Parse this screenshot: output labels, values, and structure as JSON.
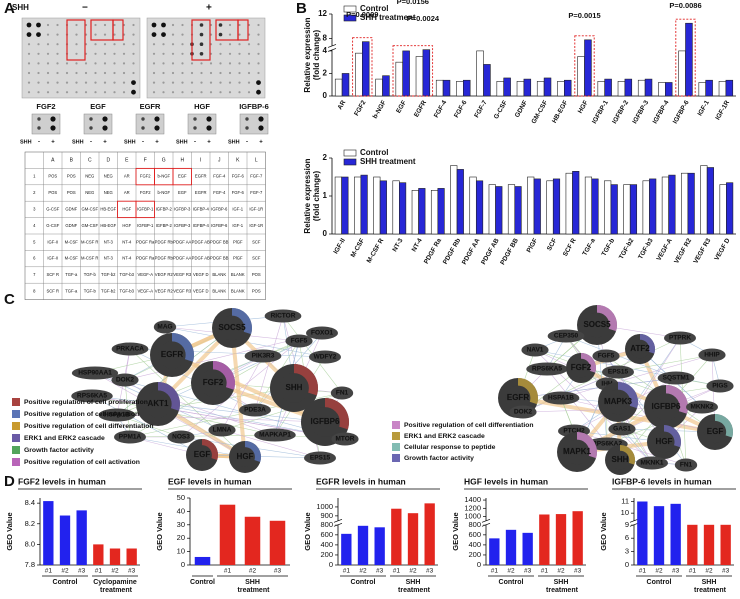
{
  "panels": {
    "a": "A",
    "b": "B",
    "c": "C",
    "d": "D"
  },
  "array": {
    "treatment_label": "SHH",
    "minus": "−",
    "plus": "+",
    "blots": [
      "FGF2",
      "EGF",
      "EGFR",
      "HGF",
      "IGFBP-6"
    ],
    "blot_sign": [
      "SHH",
      "-",
      "+"
    ]
  },
  "table": {
    "header": [
      "A",
      "B",
      "C",
      "D",
      "E",
      "F",
      "G",
      "H",
      "I",
      "J",
      "K",
      "L"
    ],
    "rows": [
      [
        "1",
        "POS",
        "POS",
        "NEG",
        "NEG",
        "AR",
        "FGF2",
        "b-NGF",
        "EGF",
        "EGFR",
        "FGF-4",
        "FGF-6",
        "FGF-7"
      ],
      [
        "2",
        "POS",
        "POS",
        "NEG",
        "NEG",
        "AR",
        "FGF2",
        "b-NGF",
        "EGF",
        "EGFR",
        "FGF-4",
        "FGF-6",
        "FGF-7"
      ],
      [
        "3",
        "G-CSF",
        "GDNF",
        "GM-CSF",
        "HB-EGF",
        "HGF",
        "IGFBP-1",
        "IGFBP-2",
        "IGFBP-3",
        "IGFBP-4",
        "IGFBP-6",
        "IGF-1",
        "IGF-1R"
      ],
      [
        "4",
        "G-CSF",
        "GDNF",
        "GM-CSF",
        "HB-EGF",
        "HGF",
        "IGFBP-1",
        "IGFBP-2",
        "IGFBP-3",
        "IGFBP-4",
        "IGFBP-6",
        "IGF-1",
        "IGF-1R"
      ],
      [
        "5",
        "IGF-II",
        "M-CSF",
        "M-CSF R",
        "NT-3",
        "NT-4",
        "PDGF Ra",
        "PDGF Rb",
        "PDGF AA",
        "PDGF AB",
        "PDGF BB",
        "PlGF",
        "SCF"
      ],
      [
        "6",
        "IGF-II",
        "M-CSF",
        "M-CSF R",
        "NT-3",
        "NT-4",
        "PDGF Ra",
        "PDGF Rb",
        "PDGF AA",
        "PDGF AB",
        "PDGF BB",
        "PlGF",
        "SCF"
      ],
      [
        "7",
        "SCF R",
        "TGF-a",
        "TGF-b",
        "TGF-b2",
        "TGF-b3",
        "VEGF-A",
        "VEGF R2",
        "VEGF R3",
        "VEGF D",
        "BLANK",
        "BLANK",
        "POS"
      ],
      [
        "8",
        "SCF R",
        "TGF-a",
        "TGF-b",
        "TGF-b2",
        "TGF-b3",
        "VEGF-A",
        "VEGF R2",
        "VEGF R3",
        "VEGF D",
        "BLANK",
        "BLANK",
        "POS"
      ]
    ]
  },
  "network": {
    "left_nodes": [
      "MAG",
      "SOCS5",
      "RICTOR",
      "FOXO1",
      "FGF5",
      "WDFY2",
      "PRKACA",
      "EGFR",
      "PIK3R3",
      "HSP90AA1",
      "DOK2",
      "FGF2",
      "SHH",
      "FN1",
      "RPS6KA5",
      "AKT1",
      "HSPA1B",
      "PDE3A",
      "IGFBP6",
      "PPM1A",
      "LMNA",
      "NOS3",
      "MAPKAP1",
      "MTOR",
      "EGF",
      "HGF",
      "EPS15"
    ],
    "right_nodes": [
      "SOCS5",
      "CEP350",
      "NAV1",
      "ATF2",
      "PTPRK",
      "FGF5",
      "HHIP",
      "RPS6KA5",
      "FGF2",
      "EPS15",
      "IHH",
      "SQSTM1",
      "PIGS",
      "EGFR",
      "HSPA1B",
      "MAPK3",
      "IGFBP6",
      "MKNK2",
      "EGF",
      "DOK2",
      "GAS1",
      "PTCH2",
      "RPS6KA2",
      "HGF",
      "MAPK1",
      "SHH",
      "MKNK1",
      "FN1"
    ],
    "left_legend": [
      {
        "label": "Positive regulation of cell proliferation",
        "color": "#a8423f"
      },
      {
        "label": "Positive regulation of cell migration",
        "color": "#5b74b6"
      },
      {
        "label": "Positive regulation of cell differentiation",
        "color": "#c99a2e"
      },
      {
        "label": "ERK1 and ERK2 cascade",
        "color": "#6a5aa6"
      },
      {
        "label": "Growth factor activity",
        "color": "#53a45c"
      },
      {
        "label": "Positive regulation of cell activation",
        "color": "#b864b8"
      }
    ],
    "right_legend": [
      {
        "label": "Positive regulation of cell differentiation",
        "color": "#c985c6"
      },
      {
        "label": "ERK1 and ERK2 cascade",
        "color": "#b89a3c"
      },
      {
        "label": "Cellular response to peptide",
        "color": "#82bcb3"
      },
      {
        "label": "Growth factor activity",
        "color": "#6b67b2"
      }
    ]
  },
  "chart_data": [
    {
      "type": "bar",
      "categories": [
        "AR",
        "FGF2",
        "b-NGF",
        "EGF",
        "EGFR",
        "FGF-4",
        "FGF-6",
        "FGF-7",
        "G-CSF",
        "GDNF",
        "GM-CSF",
        "HB-EGF",
        "HGF",
        "IGFBP-1",
        "IGFBP-2",
        "IGFBP-3",
        "IGFBP-4",
        "IGFBP-6",
        "IGF-1",
        "IGF-1R"
      ],
      "series": [
        {
          "name": "Control",
          "color": "#ffffff",
          "values": [
            1.5,
            3.8,
            1.5,
            3,
            3.5,
            1.4,
            1.3,
            4,
            1.3,
            1.3,
            1.3,
            1.3,
            3.5,
            1.3,
            1.3,
            1.4,
            1.2,
            5.8,
            1.2,
            1.3
          ]
        },
        {
          "name": "SHH treatment",
          "color": "#2727d6",
          "values": [
            2,
            7.5,
            1.8,
            4.5,
            6.2,
            1.4,
            1.4,
            2.8,
            1.6,
            1.5,
            1.6,
            1.4,
            7.8,
            1.5,
            1.5,
            1.5,
            1.2,
            10.5,
            1.4,
            1.4
          ]
        }
      ],
      "ylim": [
        0,
        12
      ],
      "y_break": [
        4,
        6
      ],
      "yticks": [
        0,
        2,
        4,
        8,
        12
      ],
      "y_label": [
        "Relative expression",
        "(fold change)"
      ],
      "annotations": [
        "P=0.0009",
        "P=0.0156",
        "P=0.0024",
        "P=0.0015",
        "P=0.0086"
      ]
    },
    {
      "type": "bar",
      "categories": [
        "IGF-II",
        "M-CSF",
        "M-CSF R",
        "NT-3",
        "NT-4",
        "PDGF Ra",
        "PDGF Rb",
        "PDGF AA",
        "PDGF AB",
        "PDGF BB",
        "PlGF",
        "SCF",
        "SCF R",
        "TGF-a",
        "TGF-b",
        "TGF-b2",
        "TGF-b3",
        "VEGF-A",
        "VEGF R2",
        "VEGF R3",
        "VEGF D"
      ],
      "series": [
        {
          "name": "Control",
          "color": "#ffffff",
          "values": [
            1.5,
            1.5,
            1.5,
            1.4,
            1.15,
            1.15,
            1.8,
            1.5,
            1.3,
            1.3,
            1.5,
            1.4,
            1.6,
            1.5,
            1.4,
            1.3,
            1.4,
            1.5,
            1.6,
            1.8,
            1.3
          ]
        },
        {
          "name": "SHH treatment",
          "color": "#2727d6",
          "values": [
            1.5,
            1.55,
            1.4,
            1.35,
            1.2,
            1.2,
            1.7,
            1.4,
            1.25,
            1.25,
            1.45,
            1.45,
            1.65,
            1.45,
            1.3,
            1.3,
            1.45,
            1.55,
            1.6,
            1.75,
            1.35
          ]
        }
      ],
      "ylim": [
        0,
        2
      ],
      "yticks": [
        0,
        1,
        2
      ],
      "y_label": [
        "Relative expression",
        "(fold change)"
      ]
    },
    {
      "type": "bar",
      "title": "FGF2 levels in human",
      "y_label": "GEO Value",
      "categories": [
        "#1",
        "#2",
        "#3",
        "#1",
        "#2",
        "#3"
      ],
      "series": [
        {
          "name": "Control",
          "color": "#2222ee",
          "values": [
            8.42,
            8.28,
            8.33,
            null,
            null,
            null
          ]
        },
        {
          "name": "Cyclopamine treatment",
          "color": "#e3271f",
          "values": [
            null,
            null,
            null,
            8.0,
            7.96,
            7.96
          ]
        }
      ],
      "ylim": [
        7.8,
        8.45
      ],
      "yticks": [
        7.8,
        {
          "value": 8,
          "label": "8.0"
        },
        8.2,
        8.4
      ]
    },
    {
      "type": "bar",
      "title": "EGF levels in human",
      "y_label": "GEO Value",
      "categories": [
        null,
        "#1",
        "#2",
        "#3"
      ],
      "series": [
        {
          "name": "Control",
          "color": "#2222ee",
          "values": [
            6,
            null,
            null,
            null
          ]
        },
        {
          "name": "SHH treatment",
          "color": "#e3271f",
          "values": [
            null,
            45,
            36,
            33
          ]
        }
      ],
      "ylim": [
        0,
        50
      ],
      "yticks": [
        0,
        10,
        20,
        30,
        40,
        50
      ]
    },
    {
      "type": "bar",
      "title": "EGFR levels in human",
      "y_label": "GEO Value",
      "categories": [
        "#1",
        "#2",
        "#3",
        "#1",
        "#2",
        "#3"
      ],
      "series": [
        {
          "name": "Control",
          "color": "#2222ee",
          "values": [
            620,
            780,
            750,
            null,
            null,
            null
          ]
        },
        {
          "name": "SHH treatment",
          "color": "#e3271f",
          "values": [
            null,
            null,
            null,
            980,
            930,
            1040
          ]
        }
      ],
      "ylim": [
        0,
        1100
      ],
      "y_break": [
        800,
        800
      ],
      "yticks": [
        0,
        200,
        400,
        600,
        800,
        900,
        1000
      ]
    },
    {
      "type": "bar",
      "title": "HGF levels in human",
      "y_label": "GEO Value",
      "categories": [
        "#1",
        "#2",
        "#3",
        "#1",
        "#2",
        "#3"
      ],
      "series": [
        {
          "name": "Control",
          "color": "#2222ee",
          "values": [
            530,
            700,
            640,
            null,
            null,
            null
          ]
        },
        {
          "name": "SHH treatment",
          "color": "#e3271f",
          "values": [
            null,
            null,
            null,
            1050,
            1060,
            1130
          ]
        }
      ],
      "ylim": [
        0,
        1450
      ],
      "y_break": [
        800,
        800
      ],
      "yticks": [
        0,
        200,
        400,
        600,
        800,
        1000,
        1200,
        1400
      ]
    },
    {
      "type": "bar",
      "title": "IGFBP-6 levels in human",
      "y_label": "GEO Value",
      "categories": [
        "#1",
        "#2",
        "#3",
        "#1",
        "#2",
        "#3"
      ],
      "series": [
        {
          "name": "Control",
          "color": "#2222ee",
          "values": [
            11,
            10.6,
            10.8,
            null,
            null,
            null
          ]
        },
        {
          "name": "SHH treatment",
          "color": "#e3271f",
          "values": [
            null,
            null,
            null,
            9,
            9,
            9
          ]
        }
      ],
      "ylim": [
        0,
        11.3
      ],
      "y_break": [
        9,
        9
      ],
      "yticks": [
        0,
        3,
        6,
        9,
        10,
        11
      ]
    }
  ]
}
